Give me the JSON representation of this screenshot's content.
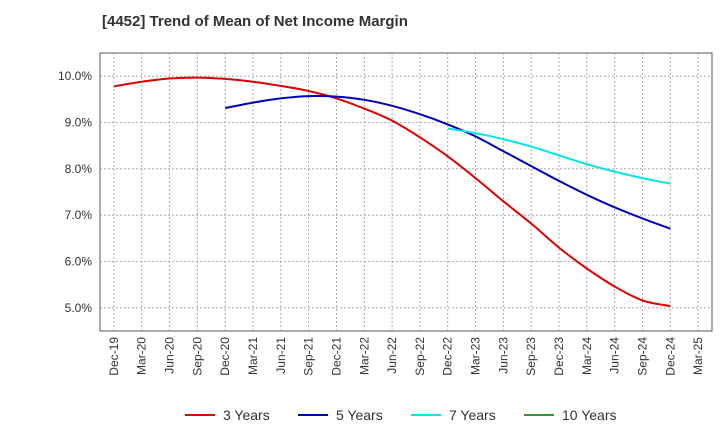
{
  "chart_data": {
    "type": "line",
    "title": "[4452]  Trend of Mean of Net Income Margin",
    "xlabel": "",
    "ylabel": "",
    "x_ticks": [
      "Dec-19",
      "Mar-20",
      "Jun-20",
      "Sep-20",
      "Dec-20",
      "Mar-21",
      "Jun-21",
      "Sep-21",
      "Dec-21",
      "Mar-22",
      "Jun-22",
      "Sep-22",
      "Dec-22",
      "Mar-23",
      "Jun-23",
      "Sep-23",
      "Dec-23",
      "Mar-24",
      "Jun-24",
      "Sep-24",
      "Dec-24",
      "Mar-25"
    ],
    "y_ticks": [
      "5.0%",
      "6.0%",
      "7.0%",
      "8.0%",
      "9.0%",
      "10.0%"
    ],
    "y_tick_values": [
      5.0,
      6.0,
      7.0,
      8.0,
      9.0,
      10.0
    ],
    "ylim": [
      4.5,
      10.5
    ],
    "grid": true,
    "legend_position": "bottom",
    "series": [
      {
        "name": "3 Years",
        "color": "#dd0000",
        "x": [
          "Dec-19",
          "Mar-20",
          "Jun-20",
          "Sep-20",
          "Dec-20",
          "Mar-21",
          "Jun-21",
          "Sep-21",
          "Dec-21",
          "Mar-22",
          "Jun-22",
          "Sep-22",
          "Dec-22",
          "Mar-23",
          "Jun-23",
          "Sep-23",
          "Dec-23",
          "Mar-24",
          "Jun-24",
          "Sep-24",
          "Dec-24"
        ],
        "values": [
          9.78,
          9.88,
          9.95,
          9.97,
          9.94,
          9.88,
          9.79,
          9.68,
          9.52,
          9.3,
          9.04,
          8.68,
          8.27,
          7.8,
          7.3,
          6.82,
          6.3,
          5.85,
          5.46,
          5.16,
          5.04
        ]
      },
      {
        "name": "5 Years",
        "color": "#0000bb",
        "x": [
          "Dec-20",
          "Mar-21",
          "Jun-21",
          "Sep-21",
          "Dec-21",
          "Mar-22",
          "Jun-22",
          "Sep-22",
          "Dec-22",
          "Mar-23",
          "Jun-23",
          "Sep-23",
          "Dec-23",
          "Mar-24",
          "Jun-24",
          "Sep-24",
          "Dec-24"
        ],
        "values": [
          9.31,
          9.43,
          9.52,
          9.57,
          9.56,
          9.49,
          9.36,
          9.18,
          8.96,
          8.7,
          8.38,
          8.06,
          7.74,
          7.44,
          7.17,
          6.93,
          6.71
        ]
      },
      {
        "name": "7 Years",
        "color": "#00e5e5",
        "x": [
          "Dec-22",
          "Mar-23",
          "Jun-23",
          "Sep-23",
          "Dec-23",
          "Mar-24",
          "Jun-24",
          "Sep-24",
          "Dec-24"
        ],
        "values": [
          8.87,
          8.77,
          8.64,
          8.48,
          8.29,
          8.1,
          7.94,
          7.8,
          7.68
        ]
      },
      {
        "name": "10 Years",
        "color": "#339933",
        "x": [],
        "values": []
      }
    ]
  }
}
